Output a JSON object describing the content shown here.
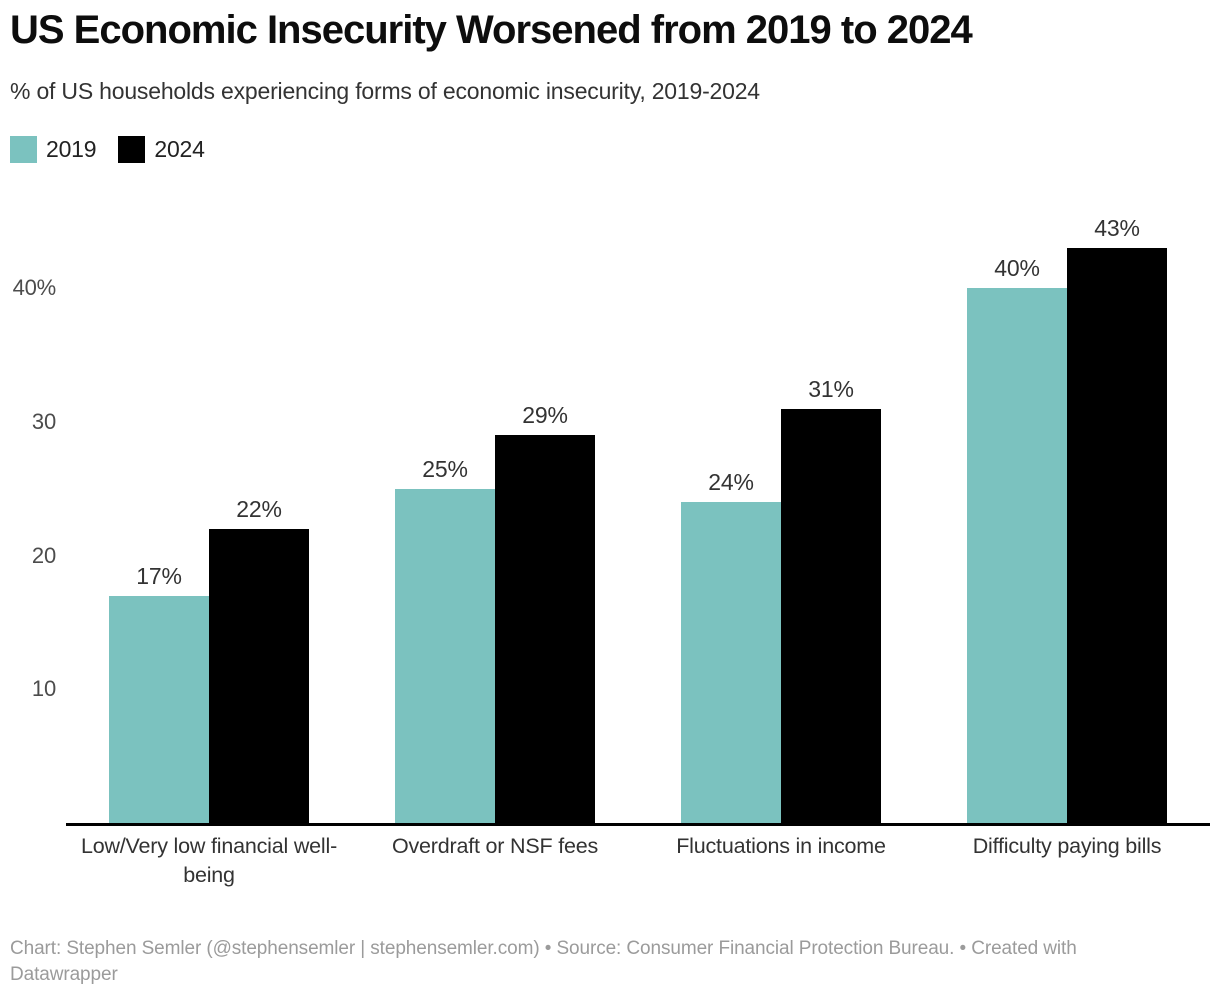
{
  "chart_data": {
    "type": "bar",
    "title": "US Economic Insecurity Worsened from 2019 to 2024",
    "subtitle": "% of US households experiencing forms of economic insecurity, 2019-2024",
    "categories": [
      "Low/Very low financial well-being",
      "Overdraft or NSF fees",
      "Fluctuations in income",
      "Difficulty paying bills"
    ],
    "series": [
      {
        "name": "2019",
        "color": "#7bc2bf",
        "values": [
          17,
          25,
          24,
          40
        ],
        "labels": [
          "17%",
          "25%",
          "24%",
          "40%"
        ]
      },
      {
        "name": "2024",
        "color": "#000000",
        "values": [
          22,
          29,
          31,
          43
        ],
        "labels": [
          "22%",
          "29%",
          "31%",
          "43%"
        ]
      }
    ],
    "yticks": [
      {
        "value": 10,
        "label": "10"
      },
      {
        "value": 20,
        "label": "20"
      },
      {
        "value": 30,
        "label": "30"
      },
      {
        "value": 40,
        "label": "40%"
      }
    ],
    "ylim": [
      0,
      46.6
    ],
    "grid": false,
    "legend_position": "top-left",
    "axis_color": "#000000",
    "xlabel": "",
    "ylabel": ""
  },
  "footer": {
    "text": "Chart: Stephen Semler (@stephensemler | stephensemler.com) • Source: Consumer Financial Protection Bureau. • Created with Datawrapper"
  }
}
